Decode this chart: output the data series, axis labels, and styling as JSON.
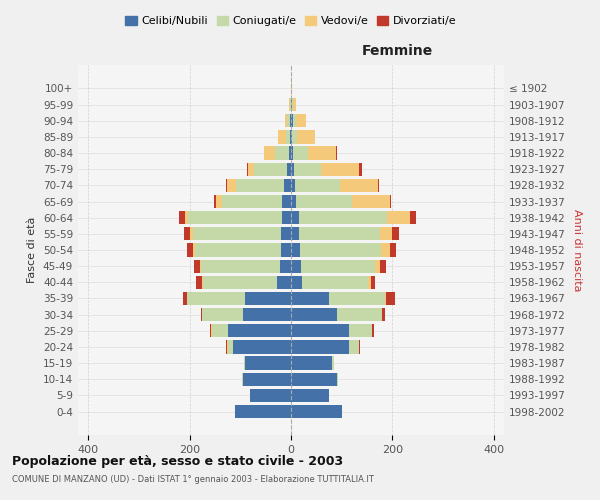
{
  "age_groups": [
    "0-4",
    "5-9",
    "10-14",
    "15-19",
    "20-24",
    "25-29",
    "30-34",
    "35-39",
    "40-44",
    "45-49",
    "50-54",
    "55-59",
    "60-64",
    "65-69",
    "70-74",
    "75-79",
    "80-84",
    "85-89",
    "90-94",
    "95-99",
    "100+"
  ],
  "birth_years": [
    "1998-2002",
    "1993-1997",
    "1988-1992",
    "1983-1987",
    "1978-1982",
    "1973-1977",
    "1968-1972",
    "1963-1967",
    "1958-1962",
    "1953-1957",
    "1948-1952",
    "1943-1947",
    "1938-1942",
    "1933-1937",
    "1928-1932",
    "1923-1927",
    "1918-1922",
    "1913-1917",
    "1908-1912",
    "1903-1907",
    "≤ 1902"
  ],
  "males": {
    "celibi": [
      110,
      80,
      95,
      90,
      115,
      125,
      95,
      90,
      28,
      22,
      20,
      19,
      18,
      17,
      14,
      8,
      4,
      2,
      2,
      0,
      0
    ],
    "coniugati": [
      0,
      0,
      1,
      2,
      10,
      30,
      80,
      115,
      145,
      155,
      170,
      175,
      185,
      120,
      95,
      65,
      28,
      8,
      5,
      2,
      0
    ],
    "vedovi": [
      0,
      0,
      0,
      0,
      2,
      2,
      0,
      0,
      2,
      3,
      4,
      5,
      6,
      10,
      18,
      12,
      22,
      15,
      5,
      2,
      0
    ],
    "divorziati": [
      0,
      0,
      0,
      0,
      2,
      2,
      2,
      8,
      12,
      12,
      12,
      12,
      12,
      5,
      2,
      2,
      0,
      0,
      0,
      0,
      0
    ]
  },
  "females": {
    "nubili": [
      100,
      75,
      90,
      80,
      115,
      115,
      90,
      75,
      22,
      20,
      18,
      15,
      15,
      10,
      8,
      5,
      4,
      2,
      3,
      2,
      0
    ],
    "coniugate": [
      0,
      0,
      2,
      4,
      20,
      45,
      90,
      110,
      130,
      145,
      160,
      160,
      175,
      110,
      88,
      55,
      30,
      10,
      6,
      2,
      0
    ],
    "vedove": [
      0,
      0,
      0,
      0,
      0,
      0,
      0,
      2,
      5,
      10,
      18,
      25,
      45,
      75,
      75,
      75,
      55,
      35,
      20,
      5,
      2
    ],
    "divorziate": [
      0,
      0,
      0,
      0,
      2,
      3,
      5,
      18,
      8,
      12,
      12,
      12,
      12,
      2,
      3,
      5,
      2,
      0,
      0,
      0,
      0
    ]
  },
  "colors": {
    "celibi": "#4472a8",
    "coniugati": "#c5d9a8",
    "vedovi": "#f5c97a",
    "divorziati": "#c0392b"
  },
  "legend_labels": [
    "Celibi/Nubili",
    "Coniugati/e",
    "Vedovi/e",
    "Divorziati/e"
  ],
  "title": "Popolazione per età, sesso e stato civile - 2003",
  "subtitle": "COMUNE DI MANZANO (UD) - Dati ISTAT 1° gennaio 2003 - Elaborazione TUTTITALIA.IT",
  "ylabel_left": "Fasce di età",
  "ylabel_right": "Anni di nascita",
  "xlabel_right": "Femmine",
  "xlim": 420,
  "background_color": "#f5f5f5",
  "plot_bg": "#f5f5f5",
  "grid_color": "#cccccc"
}
